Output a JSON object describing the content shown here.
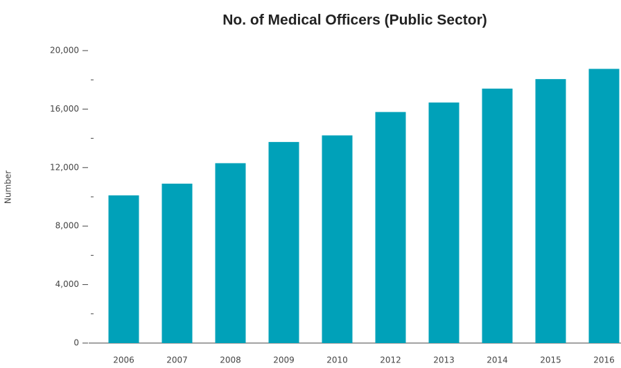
{
  "chart_data": {
    "type": "bar",
    "title": "No. of Medical Officers (Public Sector)",
    "y_label": "Number",
    "categories": [
      "2006",
      "2007",
      "2008",
      "2009",
      "2010",
      "2012",
      "2013",
      "2014",
      "2015",
      "2016"
    ],
    "values": [
      10100,
      10900,
      12300,
      13750,
      14200,
      15800,
      16450,
      17400,
      18050,
      18750
    ],
    "color": "#00a1b9",
    "ylim": [
      0,
      20000
    ],
    "yticks": [
      0,
      {
        "value": 4000,
        "label": "4,000"
      },
      {
        "value": 8000,
        "label": "8,000"
      },
      {
        "value": 12000,
        "label": "12,000"
      },
      {
        "value": 16000,
        "label": "16,000"
      },
      {
        "value": 20000,
        "label": "20,000"
      }
    ],
    "minor_yticks": [
      2000,
      6000,
      10000,
      14000,
      18000
    ],
    "grid": false
  }
}
